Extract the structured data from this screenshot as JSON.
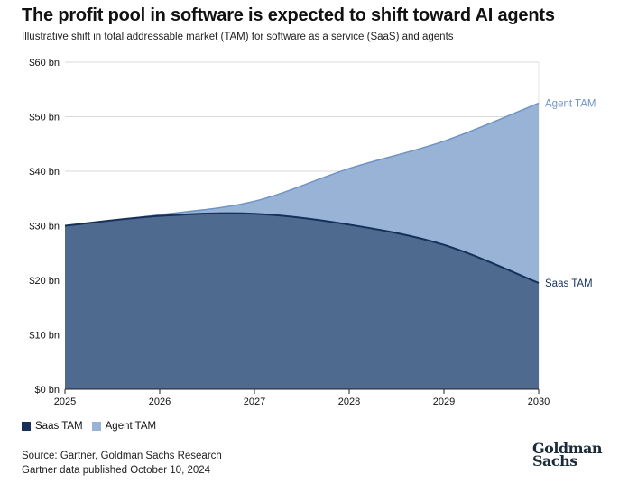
{
  "header": {
    "title": "The profit pool in software is expected to shift toward AI agents",
    "subtitle": "Illustrative shift in total addressable market (TAM) for software as a service (SaaS) and agents"
  },
  "chart_data": {
    "type": "area",
    "title": "The profit pool in software is expected to shift toward AI agents",
    "x": [
      2025,
      2026,
      2027,
      2028,
      2029,
      2030
    ],
    "x_tick_labels": [
      "2025",
      "2026",
      "2027",
      "2028",
      "2029",
      "2030"
    ],
    "y_tick_labels": [
      "$0 bn",
      "$10 bn",
      "$20 bn",
      "$30 bn",
      "$40 bn",
      "$50 bn",
      "$60 bn"
    ],
    "y_ticks": [
      0,
      10,
      20,
      30,
      40,
      50,
      60
    ],
    "ylim": [
      0,
      60
    ],
    "xlabel": "",
    "ylabel": "",
    "grid": true,
    "series": [
      {
        "name": "Saas TAM",
        "color": "#4e6a8f",
        "line_color": "#17305a",
        "values": [
          30,
          31.8,
          32.2,
          30.2,
          26.5,
          19.5
        ]
      },
      {
        "name": "Agent TAM",
        "color": "#98b3d6",
        "line_color": "#6e94c6",
        "values": [
          30,
          32,
          34.5,
          40.5,
          45.5,
          52.5
        ]
      }
    ],
    "end_labels": [
      "Agent TAM",
      "Saas TAM"
    ],
    "legend": {
      "position": "bottom-left",
      "items": [
        "Saas TAM",
        "Agent TAM"
      ]
    }
  },
  "footer": {
    "source_line1": "Source: Gartner, Goldman Sachs Research",
    "source_line2": "Gartner data published October 10, 2024",
    "logo_line1": "Goldman",
    "logo_line2": "Sachs"
  }
}
